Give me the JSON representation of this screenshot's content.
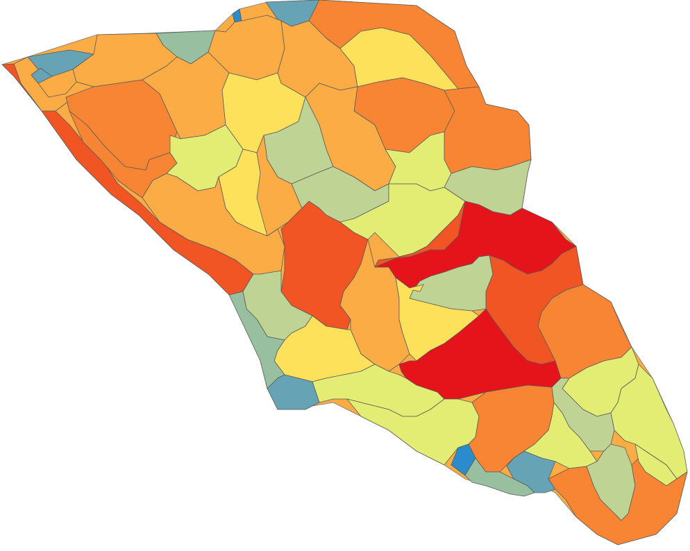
{
  "map": {
    "type": "choropleth",
    "palette": {
      "red": "#e5141a",
      "red_orange": "#f05523",
      "orange": "#f78533",
      "light_orange": "#fbac44",
      "yellow": "#fde15a",
      "yellow_green": "#e3ec73",
      "sage": "#bfd394",
      "teal_green": "#98bfa0",
      "teal": "#66a3b4",
      "blue": "#2b8ccc"
    },
    "regions": [
      {
        "id": "r01",
        "class": "teal"
      },
      {
        "id": "r02",
        "class": "blue"
      },
      {
        "id": "r03",
        "class": "orange"
      },
      {
        "id": "r04",
        "class": "teal"
      },
      {
        "id": "r05",
        "class": "teal_green"
      },
      {
        "id": "r06",
        "class": "blue"
      },
      {
        "id": "r07",
        "class": "light_orange"
      },
      {
        "id": "r08",
        "class": "light_orange"
      },
      {
        "id": "r09",
        "class": "light_orange"
      },
      {
        "id": "r10",
        "class": "teal"
      },
      {
        "id": "r11",
        "class": "yellow"
      },
      {
        "id": "r12",
        "class": "light_orange"
      },
      {
        "id": "r13",
        "class": "orange"
      },
      {
        "id": "r14",
        "class": "red_orange"
      },
      {
        "id": "r15",
        "class": "light_orange"
      },
      {
        "id": "r16",
        "class": "orange"
      },
      {
        "id": "r17",
        "class": "light_orange"
      },
      {
        "id": "r18",
        "class": "yellow"
      },
      {
        "id": "r19",
        "class": "orange"
      },
      {
        "id": "r20",
        "class": "orange"
      },
      {
        "id": "r21",
        "class": "yellow_green"
      },
      {
        "id": "r22",
        "class": "sage"
      },
      {
        "id": "r23",
        "class": "light_orange"
      },
      {
        "id": "r24",
        "class": "yellow_green"
      },
      {
        "id": "r25",
        "class": "sage"
      },
      {
        "id": "r26",
        "class": "yellow"
      },
      {
        "id": "r27",
        "class": "sage"
      },
      {
        "id": "r28",
        "class": "light_orange"
      },
      {
        "id": "r29",
        "class": "red_orange"
      },
      {
        "id": "r30",
        "class": "yellow_green"
      },
      {
        "id": "r31",
        "class": "yellow_green"
      },
      {
        "id": "r32",
        "class": "red"
      },
      {
        "id": "r33",
        "class": "red_orange"
      },
      {
        "id": "r34",
        "class": "sage"
      },
      {
        "id": "r35",
        "class": "light_orange"
      },
      {
        "id": "r36",
        "class": "yellow"
      },
      {
        "id": "r37",
        "class": "sage"
      },
      {
        "id": "r38",
        "class": "yellow"
      },
      {
        "id": "r39",
        "class": "teal_green"
      },
      {
        "id": "r40",
        "class": "red"
      },
      {
        "id": "r41",
        "class": "orange"
      },
      {
        "id": "r42",
        "class": "yellow_green"
      },
      {
        "id": "r43",
        "class": "teal"
      },
      {
        "id": "r44",
        "class": "yellow_green"
      },
      {
        "id": "r45",
        "class": "yellow_green"
      },
      {
        "id": "r46",
        "class": "orange"
      },
      {
        "id": "r47",
        "class": "yellow_green"
      },
      {
        "id": "r48",
        "class": "yellow_green"
      },
      {
        "id": "r49",
        "class": "sage"
      },
      {
        "id": "r50",
        "class": "sage"
      },
      {
        "id": "r51",
        "class": "orange"
      },
      {
        "id": "r52",
        "class": "blue"
      },
      {
        "id": "r53",
        "class": "teal_green"
      },
      {
        "id": "r54",
        "class": "teal"
      },
      {
        "id": "r55",
        "class": "yellow_green"
      },
      {
        "id": "r56",
        "class": "red_orange"
      }
    ]
  }
}
